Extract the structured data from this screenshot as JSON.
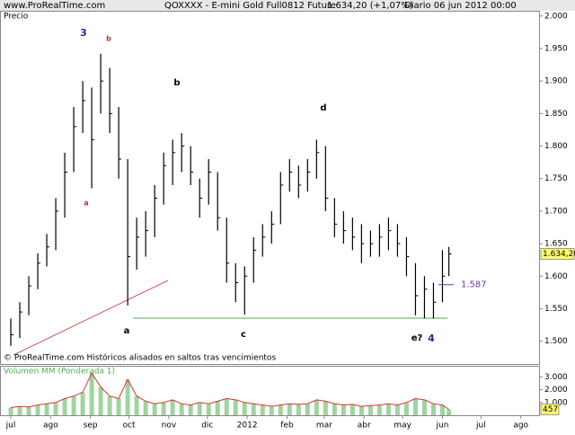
{
  "header": {
    "site": "www.ProRealTime.com",
    "instrument": "QOXXXX - E-mini Gold Full0812 Future",
    "change": "1.634,20 (+1,07%)",
    "period": "Diario  06 jun 2012 00:00"
  },
  "chart_data": [
    {
      "type": "ohlc",
      "label": "Precio",
      "note": "© ProRealTime.com Históricos alisados en saltos tras vencimientos",
      "x": [
        0,
        7,
        14,
        21,
        28,
        35,
        42,
        49,
        56,
        63,
        70,
        77,
        84,
        91,
        98,
        105,
        112,
        119,
        126,
        133,
        140,
        147,
        154,
        161,
        168,
        175,
        182,
        189,
        196,
        203,
        210,
        217,
        224,
        231,
        238,
        245,
        252,
        259,
        266,
        273,
        280,
        287,
        294,
        301,
        308,
        315,
        322,
        329,
        336,
        341
      ],
      "high": [
        1535,
        1560,
        1600,
        1635,
        1665,
        1720,
        1790,
        1860,
        1900,
        1890,
        1942,
        1920,
        1860,
        1780,
        1690,
        1700,
        1740,
        1790,
        1810,
        1820,
        1800,
        1750,
        1780,
        1760,
        1690,
        1620,
        1615,
        1660,
        1680,
        1700,
        1760,
        1780,
        1770,
        1780,
        1810,
        1800,
        1720,
        1700,
        1690,
        1680,
        1670,
        1680,
        1690,
        1680,
        1660,
        1620,
        1600,
        1590,
        1640,
        1645
      ],
      "low": [
        1493,
        1505,
        1540,
        1580,
        1615,
        1640,
        1690,
        1760,
        1820,
        1735,
        1850,
        1820,
        1750,
        1555,
        1610,
        1630,
        1660,
        1710,
        1740,
        1760,
        1740,
        1690,
        1710,
        1670,
        1590,
        1560,
        1541,
        1590,
        1630,
        1650,
        1680,
        1730,
        1720,
        1730,
        1750,
        1700,
        1660,
        1650,
        1640,
        1620,
        1630,
        1630,
        1640,
        1630,
        1600,
        1540,
        1535,
        1535,
        1560,
        1600
      ],
      "close": [
        1510,
        1545,
        1585,
        1620,
        1645,
        1700,
        1760,
        1830,
        1870,
        1810,
        1900,
        1850,
        1780,
        1630,
        1660,
        1670,
        1720,
        1770,
        1790,
        1800,
        1760,
        1720,
        1760,
        1690,
        1620,
        1590,
        1600,
        1640,
        1660,
        1680,
        1740,
        1760,
        1740,
        1760,
        1790,
        1720,
        1680,
        1670,
        1660,
        1650,
        1650,
        1660,
        1670,
        1650,
        1630,
        1570,
        1580,
        1560,
        1600,
        1634.2
      ],
      "color": "#000000",
      "xlim": [
        -8.4,
        411.2
      ],
      "xticks": [
        {
          "value": 0,
          "label": "jul"
        },
        {
          "value": 31,
          "label": "ago"
        },
        {
          "value": 62,
          "label": "sep"
        },
        {
          "value": 92,
          "label": "oct"
        },
        {
          "value": 123,
          "label": "nov"
        },
        {
          "value": 153,
          "label": "dic"
        },
        {
          "value": 184,
          "label": "2012"
        },
        {
          "value": 215,
          "label": "feb"
        },
        {
          "value": 244,
          "label": "mar"
        },
        {
          "value": 275,
          "label": "abr"
        },
        {
          "value": 305,
          "label": "may"
        },
        {
          "value": 336,
          "label": "jun"
        },
        {
          "value": 366,
          "label": "jul"
        },
        {
          "value": 397,
          "label": "ago"
        }
      ],
      "ylim": [
        1465,
        2008
      ],
      "yticks": [
        {
          "value": 1500,
          "label": "1.500"
        },
        {
          "value": 1550,
          "label": "1.550"
        },
        {
          "value": 1600,
          "label": "1.600"
        },
        {
          "value": 1650,
          "label": "1.650"
        },
        {
          "value": 1700,
          "label": "1.700"
        },
        {
          "value": 1750,
          "label": "1.750"
        },
        {
          "value": 1800,
          "label": "1.800"
        },
        {
          "value": 1850,
          "label": "1.850"
        },
        {
          "value": 1900,
          "label": "1.900"
        },
        {
          "value": 1950,
          "label": "1.950"
        },
        {
          "value": 2000,
          "label": "2.000"
        }
      ],
      "last_price": {
        "value": 1634.2,
        "label": "1.634,20"
      },
      "level": {
        "value": 1587,
        "label": "1.587",
        "color": "#7030a0"
      },
      "annotations": [
        "3",
        "b",
        "a",
        "b",
        "d",
        "a",
        "c",
        "e?",
        "4"
      ]
    },
    {
      "type": "volume",
      "label": "Volumen MM (Ponderada 1)",
      "x": [
        0,
        7,
        14,
        21,
        28,
        35,
        42,
        49,
        56,
        63,
        70,
        77,
        84,
        91,
        98,
        105,
        112,
        119,
        126,
        133,
        140,
        147,
        154,
        161,
        168,
        175,
        182,
        189,
        196,
        203,
        210,
        217,
        224,
        231,
        238,
        245,
        252,
        259,
        266,
        273,
        280,
        287,
        294,
        301,
        308,
        315,
        322,
        329,
        336,
        341
      ],
      "values": [
        600,
        700,
        650,
        800,
        900,
        1000,
        1300,
        1500,
        1800,
        3300,
        2200,
        1500,
        1300,
        2800,
        1500,
        1100,
        900,
        1000,
        1200,
        900,
        800,
        1000,
        900,
        1100,
        1300,
        1200,
        1000,
        900,
        800,
        700,
        800,
        900,
        850,
        900,
        1200,
        1100,
        900,
        800,
        850,
        700,
        750,
        800,
        900,
        800,
        1000,
        1300,
        1200,
        900,
        800,
        457
      ],
      "color": "#9fd49f",
      "line_color": "#e03030",
      "ylim": [
        0,
        3800
      ],
      "yticks": [
        {
          "value": 1000,
          "label": "1.000"
        },
        {
          "value": 2000,
          "label": "2.000"
        },
        {
          "value": 3000,
          "label": "3.000"
        }
      ],
      "last_value": {
        "value": 457,
        "label": "457"
      }
    }
  ]
}
